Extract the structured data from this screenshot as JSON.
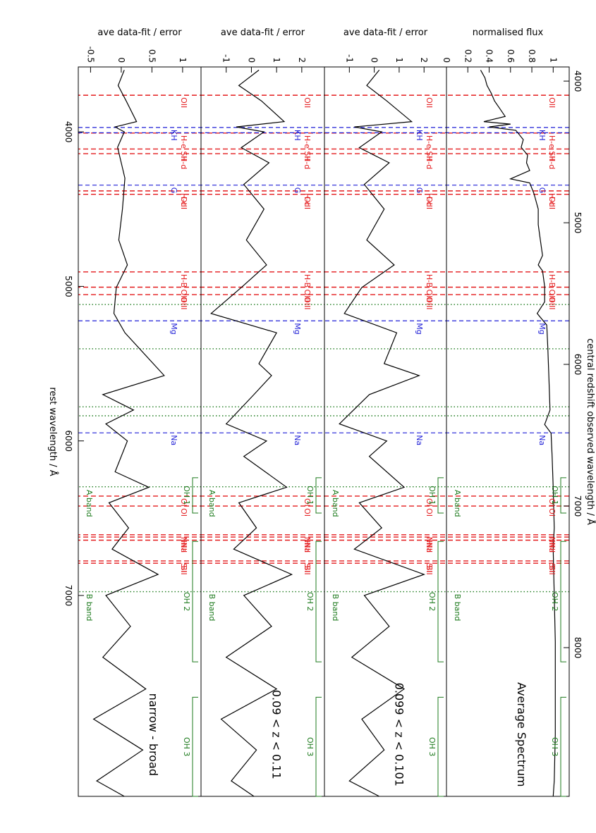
{
  "chart_data": {
    "type": "line",
    "top_axis": {
      "label": "central redshift observed wavelength / Å",
      "range": [
        3900,
        9050
      ],
      "ticks": [
        4000,
        5000,
        6000,
        7000,
        8000
      ]
    },
    "bottom_axis": {
      "label": "rest wavelength / Å",
      "range": [
        3580,
        8300
      ],
      "ticks": [
        4000,
        5000,
        6000,
        7000
      ]
    },
    "colors": {
      "emission": "#e41a1c",
      "absorption": "#1f1fd6",
      "sky": "#1e7b1e",
      "spectrum": "#000000"
    },
    "emission_lines": [
      {
        "label": "OII",
        "rest": 3727
      },
      {
        "label": "H-e",
        "rest": 3970
      },
      {
        "label": "SII",
        "rest": 4072
      },
      {
        "label": "H-d",
        "rest": 4102
      },
      {
        "label": "OIII",
        "rest": 4363
      },
      {
        "label": "H-c",
        "rest": 4341
      },
      {
        "label": "H-B",
        "rest": 4861
      },
      {
        "label": "OIII",
        "rest": 4959
      },
      {
        "label": "OIII",
        "rest": 5007
      },
      {
        "label": "OI",
        "rest": 6300
      },
      {
        "label": "OI",
        "rest": 6364
      },
      {
        "label": "NII",
        "rest": 6548
      },
      {
        "label": "H-a",
        "rest": 6563
      },
      {
        "label": "NII",
        "rest": 6583
      },
      {
        "label": "SII",
        "rest": 6716
      },
      {
        "label": "SII",
        "rest": 6731
      }
    ],
    "absorption_lines": [
      {
        "label": "K",
        "rest": 3934
      },
      {
        "label": "H",
        "rest": 3968
      },
      {
        "label": "G",
        "rest": 4304
      },
      {
        "label": "Mg",
        "rest": 5175
      },
      {
        "label": "Na",
        "rest": 5894
      }
    ],
    "sky_lines_observed": [
      5577,
      5890,
      6300,
      6363,
      6864,
      7605
    ],
    "sky_bands": [
      {
        "label": "A band",
        "observed": 6870
      },
      {
        "label": "B band",
        "observed": 7605
      }
    ],
    "oh_bands": [
      {
        "label": "OH 1",
        "range": [
          6800,
          7050
        ]
      },
      {
        "label": "OH 2",
        "range": [
          7250,
          8100
        ]
      },
      {
        "label": "OH 3",
        "range": [
          8350,
          9050
        ]
      }
    ],
    "panels": [
      {
        "ylabel": "normalised flux",
        "title": "Average Spectrum",
        "ylim": [
          0.0,
          1.15
        ],
        "yticks": [
          0.0,
          0.2,
          0.4,
          0.6,
          0.8,
          1.0
        ],
        "rest_points": [
          [
            3600,
            0.32
          ],
          [
            3650,
            0.36
          ],
          [
            3700,
            0.38
          ],
          [
            3750,
            0.42
          ],
          [
            3800,
            0.45
          ],
          [
            3850,
            0.5
          ],
          [
            3900,
            0.55
          ],
          [
            3934,
            0.35
          ],
          [
            3950,
            0.6
          ],
          [
            3968,
            0.4
          ],
          [
            3990,
            0.65
          ],
          [
            4050,
            0.72
          ],
          [
            4100,
            0.7
          ],
          [
            4150,
            0.76
          ],
          [
            4200,
            0.75
          ],
          [
            4250,
            0.78
          ],
          [
            4304,
            0.6
          ],
          [
            4330,
            0.78
          ],
          [
            4400,
            0.82
          ],
          [
            4500,
            0.86
          ],
          [
            4600,
            0.86
          ],
          [
            4700,
            0.88
          ],
          [
            4800,
            0.9
          ],
          [
            4861,
            0.86
          ],
          [
            4900,
            0.9
          ],
          [
            5000,
            0.92
          ],
          [
            5100,
            0.92
          ],
          [
            5175,
            0.85
          ],
          [
            5250,
            0.94
          ],
          [
            5400,
            0.95
          ],
          [
            5600,
            0.96
          ],
          [
            5800,
            0.97
          ],
          [
            5894,
            0.92
          ],
          [
            5950,
            0.98
          ],
          [
            6100,
            0.99
          ],
          [
            6300,
            1.0
          ],
          [
            6563,
            1.01
          ],
          [
            6700,
            1.0
          ],
          [
            7000,
            1.01
          ],
          [
            7300,
            1.02
          ],
          [
            7600,
            1.02
          ],
          [
            7900,
            1.02
          ],
          [
            8200,
            1.01
          ],
          [
            8300,
            1.0
          ]
        ]
      },
      {
        "ylabel": "ave data-fit / error",
        "title": "0.099 < z < 0.101",
        "ylim": [
          -2.0,
          2.9
        ],
        "yticks": [
          -1,
          0,
          1,
          2
        ],
        "rest_points": [
          [
            3600,
            0.2
          ],
          [
            3700,
            -0.3
          ],
          [
            3800,
            0.5
          ],
          [
            3934,
            1.5
          ],
          [
            3968,
            -0.8
          ],
          [
            4000,
            0.3
          ],
          [
            4102,
            -0.6
          ],
          [
            4200,
            0.6
          ],
          [
            4340,
            -0.4
          ],
          [
            4500,
            0.4
          ],
          [
            4700,
            -0.3
          ],
          [
            4861,
            0.8
          ],
          [
            5007,
            -0.5
          ],
          [
            5175,
            -1.2
          ],
          [
            5300,
            0.9
          ],
          [
            5500,
            0.4
          ],
          [
            5577,
            1.8
          ],
          [
            5700,
            -0.2
          ],
          [
            5890,
            -1.4
          ],
          [
            6000,
            0.5
          ],
          [
            6100,
            -0.2
          ],
          [
            6300,
            1.2
          ],
          [
            6400,
            -0.6
          ],
          [
            6563,
            0.3
          ],
          [
            6700,
            -0.8
          ],
          [
            6864,
            2.0
          ],
          [
            7000,
            -0.4
          ],
          [
            7200,
            0.6
          ],
          [
            7400,
            -0.9
          ],
          [
            7605,
            1.2
          ],
          [
            7800,
            -0.5
          ],
          [
            8000,
            0.4
          ],
          [
            8200,
            -1.0
          ],
          [
            8300,
            0.2
          ]
        ]
      },
      {
        "ylabel": "ave data-fit / error",
        "title": "0.09 < z < 0.11",
        "ylim": [
          -2.0,
          2.9
        ],
        "yticks": [
          -1,
          0,
          1,
          2
        ],
        "rest_points": [
          [
            3600,
            0.3
          ],
          [
            3700,
            -0.5
          ],
          [
            3800,
            0.4
          ],
          [
            3934,
            1.3
          ],
          [
            3968,
            -0.6
          ],
          [
            4000,
            0.5
          ],
          [
            4102,
            -0.4
          ],
          [
            4200,
            0.7
          ],
          [
            4340,
            -0.3
          ],
          [
            4500,
            0.5
          ],
          [
            4700,
            -0.2
          ],
          [
            4861,
            0.6
          ],
          [
            5007,
            -0.4
          ],
          [
            5175,
            -1.6
          ],
          [
            5300,
            1.0
          ],
          [
            5500,
            0.3
          ],
          [
            5577,
            0.8
          ],
          [
            5700,
            0.1
          ],
          [
            5890,
            -1.0
          ],
          [
            6000,
            0.6
          ],
          [
            6100,
            -0.3
          ],
          [
            6300,
            1.4
          ],
          [
            6400,
            -0.5
          ],
          [
            6563,
            0.2
          ],
          [
            6700,
            -0.7
          ],
          [
            6864,
            1.6
          ],
          [
            7000,
            -0.3
          ],
          [
            7200,
            0.8
          ],
          [
            7400,
            -1.0
          ],
          [
            7605,
            1.0
          ],
          [
            7800,
            -1.2
          ],
          [
            8000,
            0.2
          ],
          [
            8200,
            -0.8
          ],
          [
            8300,
            0.1
          ]
        ]
      },
      {
        "ylabel": "ave data-fit / error",
        "title": "narrow - broad",
        "ylim": [
          -0.7,
          1.3
        ],
        "yticks": [
          -0.5,
          0.0,
          0.5,
          1.0
        ],
        "rest_points": [
          [
            3600,
            0.05
          ],
          [
            3700,
            -0.05
          ],
          [
            3800,
            0.08
          ],
          [
            3934,
            0.25
          ],
          [
            3968,
            -0.1
          ],
          [
            4000,
            0.05
          ],
          [
            4100,
            -0.06
          ],
          [
            4300,
            0.06
          ],
          [
            4500,
            0.02
          ],
          [
            4700,
            -0.04
          ],
          [
            4861,
            0.1
          ],
          [
            5007,
            -0.08
          ],
          [
            5175,
            -0.12
          ],
          [
            5300,
            0.06
          ],
          [
            5577,
            0.7
          ],
          [
            5700,
            -0.3
          ],
          [
            5800,
            0.2
          ],
          [
            5890,
            -0.25
          ],
          [
            6000,
            0.1
          ],
          [
            6200,
            -0.1
          ],
          [
            6300,
            0.45
          ],
          [
            6400,
            -0.2
          ],
          [
            6563,
            0.12
          ],
          [
            6700,
            -0.15
          ],
          [
            6864,
            0.6
          ],
          [
            7000,
            -0.25
          ],
          [
            7200,
            0.15
          ],
          [
            7400,
            -0.3
          ],
          [
            7605,
            0.4
          ],
          [
            7800,
            -0.45
          ],
          [
            8000,
            0.35
          ],
          [
            8200,
            -0.4
          ],
          [
            8300,
            0.05
          ]
        ]
      }
    ]
  }
}
